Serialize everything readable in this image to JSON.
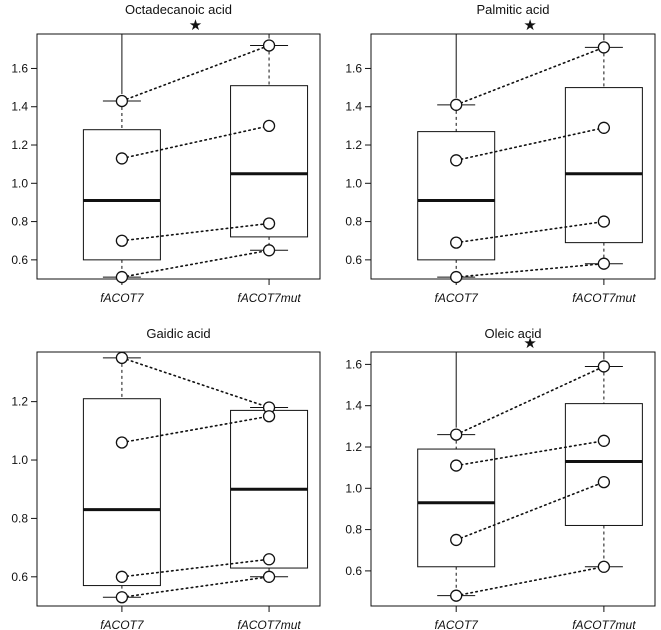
{
  "figure": {
    "type": "boxplot-grid",
    "layout": "2x2"
  },
  "colors": {
    "ink": "#111111",
    "point_fill": "#ffffff",
    "background": "#ffffff"
  },
  "chart_data": [
    {
      "type": "boxplot",
      "title": "Octadecanoic acid",
      "categories": [
        "fACOT7",
        "fACOT7mut"
      ],
      "ylim": [
        0.5,
        1.78
      ],
      "yticks": [
        0.6,
        0.8,
        1.0,
        1.2,
        1.4,
        1.6
      ],
      "ytick_labels": [
        "0.6",
        "0.8",
        "1.0",
        "1.2",
        "1.4",
        "1.6"
      ],
      "significance": {
        "marker": "★",
        "between": [
          "fACOT7",
          "fACOT7mut"
        ]
      },
      "boxes": [
        {
          "min": 0.51,
          "q1": 0.6,
          "median": 0.91,
          "q3": 1.28,
          "max": 1.43
        },
        {
          "min": 0.65,
          "q1": 0.72,
          "median": 1.05,
          "q3": 1.51,
          "max": 1.72
        }
      ],
      "points": [
        {
          "fACOT7": 1.43,
          "fACOT7mut": 1.72
        },
        {
          "fACOT7": 1.13,
          "fACOT7mut": 1.3
        },
        {
          "fACOT7": 0.7,
          "fACOT7mut": 0.79
        },
        {
          "fACOT7": 0.51,
          "fACOT7mut": 0.65
        }
      ]
    },
    {
      "type": "boxplot",
      "title": "Palmitic acid",
      "categories": [
        "fACOT7",
        "fACOT7mut"
      ],
      "ylim": [
        0.5,
        1.78
      ],
      "yticks": [
        0.6,
        0.8,
        1.0,
        1.2,
        1.4,
        1.6
      ],
      "ytick_labels": [
        "0.6",
        "0.8",
        "1.0",
        "1.2",
        "1.4",
        "1.6"
      ],
      "significance": {
        "marker": "★",
        "between": [
          "fACOT7",
          "fACOT7mut"
        ]
      },
      "boxes": [
        {
          "min": 0.51,
          "q1": 0.6,
          "median": 0.91,
          "q3": 1.27,
          "max": 1.41
        },
        {
          "min": 0.58,
          "q1": 0.69,
          "median": 1.05,
          "q3": 1.5,
          "max": 1.71
        }
      ],
      "points": [
        {
          "fACOT7": 1.41,
          "fACOT7mut": 1.71
        },
        {
          "fACOT7": 1.12,
          "fACOT7mut": 1.29
        },
        {
          "fACOT7": 0.69,
          "fACOT7mut": 0.8
        },
        {
          "fACOT7": 0.51,
          "fACOT7mut": 0.58
        }
      ]
    },
    {
      "type": "boxplot",
      "title": "Gaidic acid",
      "categories": [
        "fACOT7",
        "fACOT7mut"
      ],
      "ylim": [
        0.5,
        1.37
      ],
      "yticks": [
        0.6,
        0.8,
        1.0,
        1.2
      ],
      "ytick_labels": [
        "0.6",
        "0.8",
        "1.0",
        "1.2"
      ],
      "significance": null,
      "boxes": [
        {
          "min": 0.53,
          "q1": 0.57,
          "median": 0.83,
          "q3": 1.21,
          "max": 1.35
        },
        {
          "min": 0.6,
          "q1": 0.63,
          "median": 0.9,
          "q3": 1.17,
          "max": 1.18
        }
      ],
      "points": [
        {
          "fACOT7": 1.35,
          "fACOT7mut": 1.18
        },
        {
          "fACOT7": 1.06,
          "fACOT7mut": 1.15
        },
        {
          "fACOT7": 0.6,
          "fACOT7mut": 0.66
        },
        {
          "fACOT7": 0.53,
          "fACOT7mut": 0.6
        }
      ]
    },
    {
      "type": "boxplot",
      "title": "Oleic acid",
      "categories": [
        "fACOT7",
        "fACOT7mut"
      ],
      "ylim": [
        0.43,
        1.66
      ],
      "yticks": [
        0.6,
        0.8,
        1.0,
        1.2,
        1.4,
        1.6
      ],
      "ytick_labels": [
        "0.6",
        "0.8",
        "1.0",
        "1.2",
        "1.4",
        "1.6"
      ],
      "significance": {
        "marker": "★",
        "between": [
          "fACOT7",
          "fACOT7mut"
        ]
      },
      "boxes": [
        {
          "min": 0.48,
          "q1": 0.62,
          "median": 0.93,
          "q3": 1.19,
          "max": 1.26
        },
        {
          "min": 0.62,
          "q1": 0.82,
          "median": 1.13,
          "q3": 1.41,
          "max": 1.59
        }
      ],
      "points": [
        {
          "fACOT7": 1.26,
          "fACOT7mut": 1.59
        },
        {
          "fACOT7": 1.11,
          "fACOT7mut": 1.23
        },
        {
          "fACOT7": 0.75,
          "fACOT7mut": 1.03
        },
        {
          "fACOT7": 0.48,
          "fACOT7mut": 0.62
        }
      ]
    }
  ]
}
